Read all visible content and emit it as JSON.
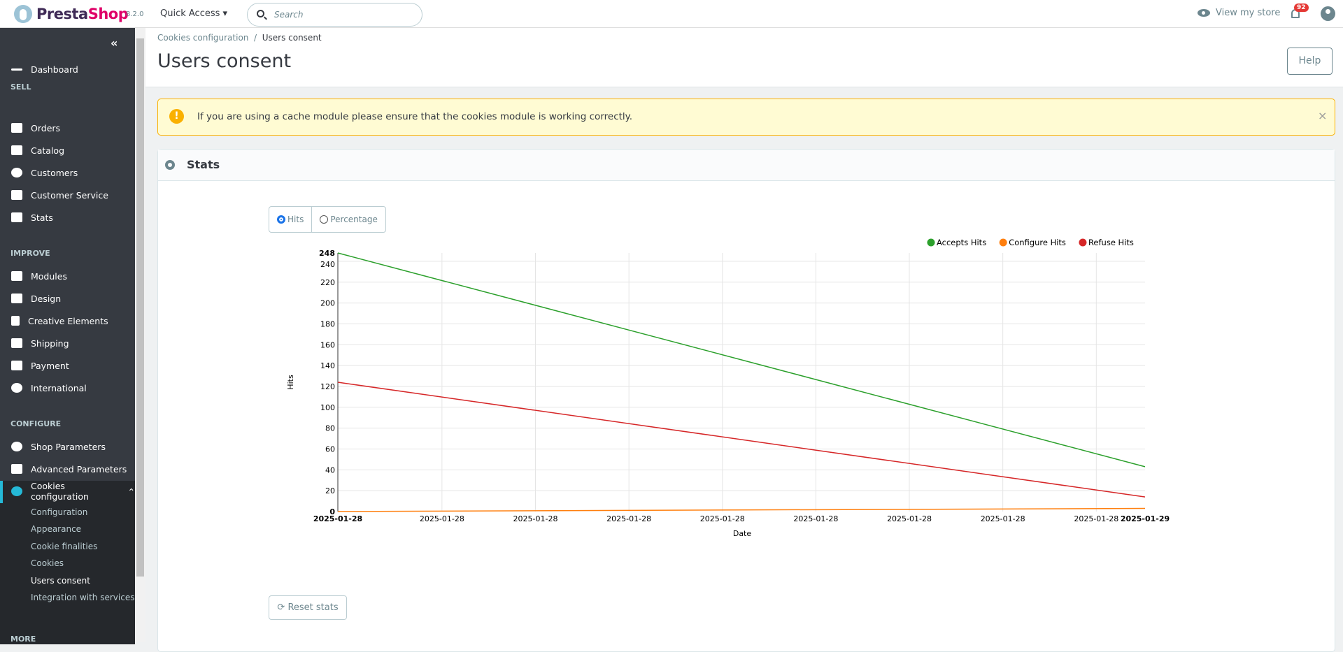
{
  "topbar": {
    "logo": "PrestaShop",
    "version": "8.2.0",
    "quick_access": "Quick Access",
    "search_placeholder": "Search",
    "view_store": "View my store",
    "notifications": "92"
  },
  "sidebar": {
    "dashboard": "Dashboard",
    "sections": {
      "sell": "SELL",
      "improve": "IMPROVE",
      "configure": "CONFIGURE",
      "more": "MORE"
    },
    "sell": [
      "Orders",
      "Catalog",
      "Customers",
      "Customer Service",
      "Stats"
    ],
    "improve": [
      "Modules",
      "Design",
      "Creative Elements",
      "Shipping",
      "Payment",
      "International"
    ],
    "configure": [
      "Shop Parameters",
      "Advanced Parameters",
      "Cookies configuration"
    ],
    "sub": [
      "Configuration",
      "Appearance",
      "Cookie finalities",
      "Cookies",
      "Users consent",
      "Integration with services"
    ]
  },
  "header": {
    "breadcrumb": [
      "Cookies configuration",
      "Users consent"
    ],
    "title": "Users consent",
    "help": "Help"
  },
  "alert": {
    "text": "If you are using a cache module please ensure that the cookies module is working correctly.",
    "close": "×"
  },
  "panel": {
    "title": "Stats",
    "mode_hits": "Hits",
    "mode_percentage": "Percentage",
    "selected_mode": "Hits",
    "reset": "Reset stats"
  },
  "chart_data": {
    "type": "line",
    "xlabel": "Date",
    "ylabel": "Hits",
    "x": [
      "2025-01-28",
      "2025-01-29"
    ],
    "xtick_labels": [
      "2025-01-28",
      "2025-01-28",
      "2025-01-28",
      "2025-01-28",
      "2025-01-28",
      "2025-01-28",
      "2025-01-28",
      "2025-01-28",
      "2025-01-28",
      "2025-01-29"
    ],
    "ylim": [
      0,
      248
    ],
    "yticks": [
      0,
      20,
      40,
      60,
      80,
      100,
      120,
      140,
      160,
      180,
      200,
      220,
      240,
      248
    ],
    "grid": true,
    "legend": "top-right",
    "series": [
      {
        "name": "Accepts Hits",
        "color": "#2ca02c",
        "values": [
          248,
          43
        ]
      },
      {
        "name": "Configure Hits",
        "color": "#ff7f0e",
        "values": [
          0,
          3
        ]
      },
      {
        "name": "Refuse Hits",
        "color": "#d62728",
        "values": [
          124,
          14
        ]
      }
    ]
  }
}
